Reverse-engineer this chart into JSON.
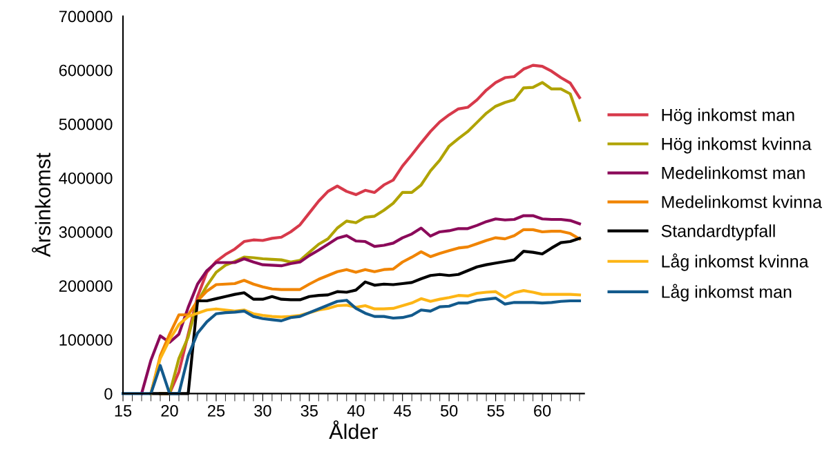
{
  "chart_data": {
    "type": "line",
    "xlabel": "Ålder",
    "ylabel": "Årsinkomst",
    "x": [
      15,
      16,
      17,
      18,
      19,
      20,
      21,
      22,
      23,
      24,
      25,
      26,
      27,
      28,
      29,
      30,
      31,
      32,
      33,
      34,
      35,
      36,
      37,
      38,
      39,
      40,
      41,
      42,
      43,
      44,
      45,
      46,
      47,
      48,
      49,
      50,
      51,
      52,
      53,
      54,
      55,
      56,
      57,
      58,
      59,
      60,
      61,
      62,
      63,
      64
    ],
    "xlim": [
      15,
      64.5
    ],
    "xticks": [
      15,
      20,
      25,
      30,
      35,
      40,
      45,
      50,
      55,
      60
    ],
    "ylim": [
      0,
      700000
    ],
    "yticks": [
      0,
      100000,
      200000,
      300000,
      400000,
      500000,
      600000,
      700000
    ],
    "grid": false,
    "legend": "right",
    "marker": "none",
    "line_style": "solid",
    "series": [
      {
        "name": "Hög inkomst man",
        "color": "#d7394a",
        "values": [
          null,
          null,
          null,
          null,
          0,
          0,
          40000,
          110000,
          180000,
          225000,
          245000,
          258000,
          268000,
          282000,
          285000,
          284000,
          288000,
          290000,
          300000,
          313000,
          335000,
          357000,
          375000,
          385000,
          375000,
          369000,
          377000,
          373000,
          387000,
          396000,
          422000,
          443000,
          465000,
          486000,
          504000,
          517000,
          528000,
          531000,
          545000,
          563000,
          577000,
          586000,
          588000,
          602000,
          609000,
          607000,
          598000,
          586000,
          576000,
          549000
        ]
      },
      {
        "name": "Hög inkomst kvinna",
        "color": "#b0a300",
        "values": [
          null,
          null,
          null,
          null,
          0,
          0,
          65000,
          105000,
          170000,
          200000,
          225000,
          238000,
          245000,
          253000,
          252000,
          250000,
          249000,
          248000,
          244000,
          247000,
          262000,
          277000,
          287000,
          307000,
          320000,
          317000,
          327000,
          329000,
          340000,
          353000,
          373000,
          373000,
          387000,
          413000,
          433000,
          459000,
          473000,
          486000,
          503000,
          520000,
          533000,
          540000,
          545000,
          567000,
          568000,
          577000,
          565000,
          565000,
          556000,
          507000
        ]
      },
      {
        "name": "Medelinkomst man",
        "color": "#8b0a5a",
        "values": [
          null,
          null,
          0,
          62000,
          107000,
          95000,
          110000,
          160000,
          203000,
          228000,
          243000,
          243000,
          243000,
          250000,
          244000,
          239000,
          238000,
          237000,
          241000,
          244000,
          256000,
          266000,
          277000,
          288000,
          293000,
          283000,
          282000,
          273000,
          275000,
          279000,
          289000,
          296000,
          307000,
          292000,
          300000,
          302000,
          306000,
          306000,
          312000,
          319000,
          324000,
          322000,
          323000,
          330000,
          330000,
          324000,
          323000,
          323000,
          321000,
          315000
        ]
      },
      {
        "name": "Medelinkomst kvinna",
        "color": "#f08400",
        "values": [
          null,
          null,
          null,
          0,
          70000,
          110000,
          146000,
          146000,
          172000,
          190000,
          202000,
          203000,
          204000,
          210000,
          203000,
          198000,
          194000,
          193000,
          193000,
          193000,
          203000,
          212000,
          219000,
          226000,
          230000,
          225000,
          230000,
          226000,
          230000,
          231000,
          244000,
          253000,
          263000,
          254000,
          260000,
          265000,
          270000,
          272000,
          278000,
          284000,
          289000,
          287000,
          293000,
          304000,
          304000,
          300000,
          301000,
          301000,
          297000,
          287000
        ]
      },
      {
        "name": "Standardtypfall",
        "color": "#000000",
        "values": [
          null,
          null,
          null,
          0,
          0,
          0,
          0,
          0,
          172000,
          172000,
          176000,
          180000,
          184000,
          187000,
          175000,
          175000,
          180000,
          175000,
          174000,
          174000,
          180000,
          182000,
          183000,
          189000,
          188000,
          192000,
          207000,
          201000,
          203000,
          202000,
          204000,
          206000,
          213000,
          219000,
          221000,
          219000,
          221000,
          228000,
          235000,
          239000,
          242000,
          245000,
          248000,
          264000,
          262000,
          259000,
          270000,
          280000,
          282000,
          288000
        ]
      },
      {
        "name": "Låg inkomst kvinna",
        "color": "#fdb515",
        "values": [
          null,
          null,
          null,
          0,
          65000,
          100000,
          128000,
          143000,
          149000,
          155000,
          157000,
          155000,
          153000,
          155000,
          148000,
          145000,
          143000,
          142000,
          143000,
          145000,
          150000,
          155000,
          158000,
          163000,
          164000,
          160000,
          163000,
          157000,
          157000,
          158000,
          163000,
          168000,
          176000,
          171000,
          175000,
          178000,
          182000,
          181000,
          186000,
          188000,
          189000,
          178000,
          187000,
          191000,
          188000,
          184000,
          184000,
          184000,
          184000,
          183000
        ]
      },
      {
        "name": "Låg inkomst man",
        "color": "#135a8c",
        "values": [
          0,
          0,
          0,
          0,
          52000,
          0,
          0,
          70000,
          112000,
          133000,
          148000,
          150000,
          151000,
          153000,
          143000,
          139000,
          137000,
          135000,
          141000,
          143000,
          150000,
          157000,
          164000,
          171000,
          173000,
          158000,
          149000,
          143000,
          143000,
          140000,
          141000,
          145000,
          155000,
          153000,
          161000,
          162000,
          168000,
          168000,
          173000,
          175000,
          177000,
          166000,
          169000,
          169000,
          169000,
          168000,
          169000,
          171000,
          172000,
          172000
        ]
      }
    ]
  }
}
